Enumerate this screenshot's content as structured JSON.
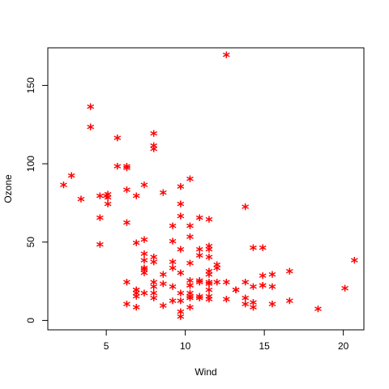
{
  "chart_data": {
    "type": "scatter",
    "title": "",
    "xlabel": "Wind",
    "ylabel": "Ozone",
    "xlim": [
      1.3,
      21.3
    ],
    "ylim": [
      -6,
      174
    ],
    "xticks": [
      5,
      10,
      15,
      20
    ],
    "yticks": [
      0,
      50,
      100,
      150
    ],
    "marker": "*",
    "marker_color": "#ff0000",
    "grid": false,
    "series": [
      {
        "points": [
          [
            7.4,
            41
          ],
          [
            8.0,
            36
          ],
          [
            12.6,
            12
          ],
          [
            11.5,
            18
          ],
          [
            8.6,
            28
          ],
          [
            13.8,
            23
          ],
          [
            20.1,
            19
          ],
          [
            8.6,
            8
          ],
          [
            6.9,
            7
          ],
          [
            9.7,
            16
          ],
          [
            9.2,
            11
          ],
          [
            10.9,
            14
          ],
          [
            13.2,
            18
          ],
          [
            11.5,
            14
          ],
          [
            12.0,
            34
          ],
          [
            18.4,
            6
          ],
          [
            11.5,
            30
          ],
          [
            9.7,
            11
          ],
          [
            9.7,
            1
          ],
          [
            16.6,
            11
          ],
          [
            9.7,
            4
          ],
          [
            12.0,
            32
          ],
          [
            12.0,
            23
          ],
          [
            14.9,
            45
          ],
          [
            5.7,
            115
          ],
          [
            7.4,
            37
          ],
          [
            9.7,
            29
          ],
          [
            13.8,
            71
          ],
          [
            11.5,
            39
          ],
          [
            8.0,
            23
          ],
          [
            14.9,
            21
          ],
          [
            20.7,
            37
          ],
          [
            9.2,
            20
          ],
          [
            11.5,
            12
          ],
          [
            10.3,
            13
          ],
          [
            4.0,
            135
          ],
          [
            9.2,
            49
          ],
          [
            9.2,
            32
          ],
          [
            4.6,
            64
          ],
          [
            10.9,
            40
          ],
          [
            5.1,
            77
          ],
          [
            6.3,
            97
          ],
          [
            5.7,
            97
          ],
          [
            7.4,
            85
          ],
          [
            14.3,
            10
          ],
          [
            14.9,
            27
          ],
          [
            14.3,
            7
          ],
          [
            6.9,
            48
          ],
          [
            10.3,
            35
          ],
          [
            6.3,
            61
          ],
          [
            5.1,
            79
          ],
          [
            11.5,
            63
          ],
          [
            6.9,
            16
          ],
          [
            8.6,
            80
          ],
          [
            8.0,
            108
          ],
          [
            8.0,
            20
          ],
          [
            10.3,
            52
          ],
          [
            6.3,
            82
          ],
          [
            7.4,
            50
          ],
          [
            10.9,
            64
          ],
          [
            9.2,
            59
          ],
          [
            8.0,
            39
          ],
          [
            13.8,
            9
          ],
          [
            7.4,
            16
          ],
          [
            4.6,
            78
          ],
          [
            4.0,
            122
          ],
          [
            10.3,
            89
          ],
          [
            8.0,
            110
          ],
          [
            11.5,
            44
          ],
          [
            11.5,
            28
          ],
          [
            9.7,
            65
          ],
          [
            11.5,
            22
          ],
          [
            10.3,
            59
          ],
          [
            6.3,
            23
          ],
          [
            7.4,
            31
          ],
          [
            10.9,
            44
          ],
          [
            10.3,
            21
          ],
          [
            15.5,
            9
          ],
          [
            14.3,
            45
          ],
          [
            12.6,
            168
          ],
          [
            9.7,
            73
          ],
          [
            3.4,
            76
          ],
          [
            8.0,
            118
          ],
          [
            9.7,
            84
          ],
          [
            2.3,
            85
          ],
          [
            6.3,
            96
          ],
          [
            6.9,
            78
          ],
          [
            5.1,
            73
          ],
          [
            2.8,
            91
          ],
          [
            4.6,
            47
          ],
          [
            7.4,
            32
          ],
          [
            15.5,
            20
          ],
          [
            10.9,
            23
          ],
          [
            10.3,
            21
          ],
          [
            10.9,
            24
          ],
          [
            9.7,
            44
          ],
          [
            14.9,
            21
          ],
          [
            15.5,
            28
          ],
          [
            6.3,
            9
          ],
          [
            10.9,
            13
          ],
          [
            11.5,
            46
          ],
          [
            6.9,
            18
          ],
          [
            13.8,
            13
          ],
          [
            10.3,
            24
          ],
          [
            10.3,
            16
          ],
          [
            8.0,
            13
          ],
          [
            12.6,
            23
          ],
          [
            9.2,
            36
          ],
          [
            10.3,
            7
          ],
          [
            10.3,
            14
          ],
          [
            16.6,
            30
          ],
          [
            6.9,
            14
          ],
          [
            13.2,
            18
          ],
          [
            14.3,
            20
          ],
          [
            8.0,
            16
          ],
          [
            11.5,
            23
          ],
          [
            6.9,
            18
          ],
          [
            7.4,
            29
          ],
          [
            8.6,
            22
          ],
          [
            5.0,
            78
          ]
        ]
      }
    ]
  }
}
